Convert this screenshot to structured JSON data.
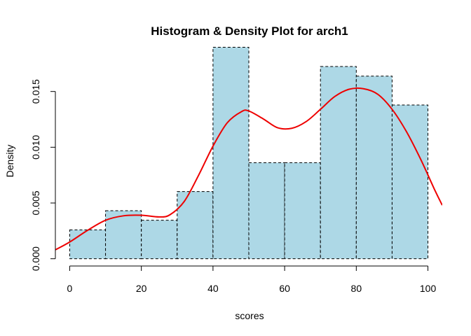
{
  "chart_data": {
    "type": "bar",
    "title": "Histogram & Density Plot for arch1",
    "xlabel": "scores",
    "ylabel": "Density",
    "xlim": [
      -4,
      104
    ],
    "ylim": [
      -0.00065,
      0.0195
    ],
    "x_ticks": [
      0,
      20,
      40,
      60,
      80,
      100
    ],
    "x_tick_labels": [
      "0",
      "20",
      "40",
      "60",
      "80",
      "100"
    ],
    "y_ticks": [
      0,
      0.005,
      0.01,
      0.015
    ],
    "y_tick_labels": [
      "0.000",
      "0.005",
      "0.010",
      "0.015"
    ],
    "grid": false,
    "bins": [
      {
        "start": 0,
        "end": 10,
        "density": 0.00259
      },
      {
        "start": 10,
        "end": 20,
        "density": 0.00431
      },
      {
        "start": 20,
        "end": 30,
        "density": 0.00345
      },
      {
        "start": 30,
        "end": 40,
        "density": 0.00603
      },
      {
        "start": 40,
        "end": 50,
        "density": 0.01897
      },
      {
        "start": 50,
        "end": 60,
        "density": 0.00862
      },
      {
        "start": 60,
        "end": 70,
        "density": 0.00862
      },
      {
        "start": 70,
        "end": 80,
        "density": 0.01724
      },
      {
        "start": 80,
        "end": 90,
        "density": 0.01638
      },
      {
        "start": 90,
        "end": 100,
        "density": 0.01379
      }
    ],
    "density_curve": {
      "x": [
        -4,
        0,
        5,
        10,
        15,
        20,
        25,
        28,
        32,
        36,
        40,
        44,
        48,
        50,
        54,
        58,
        62,
        66,
        70,
        74,
        78,
        82,
        86,
        90,
        94,
        98,
        102,
        104
      ],
      "y": [
        0.0008,
        0.0015,
        0.00255,
        0.00345,
        0.00385,
        0.0039,
        0.00375,
        0.00395,
        0.00515,
        0.0075,
        0.0101,
        0.0122,
        0.0132,
        0.01325,
        0.01255,
        0.01175,
        0.0117,
        0.0123,
        0.0134,
        0.01455,
        0.0152,
        0.01525,
        0.01475,
        0.0134,
        0.0114,
        0.0089,
        0.0061,
        0.0048
      ]
    },
    "colors": {
      "bar_fill": "#add8e6",
      "bar_stroke": "#000000",
      "curve": "#ee0000",
      "axis": "#000000"
    }
  }
}
